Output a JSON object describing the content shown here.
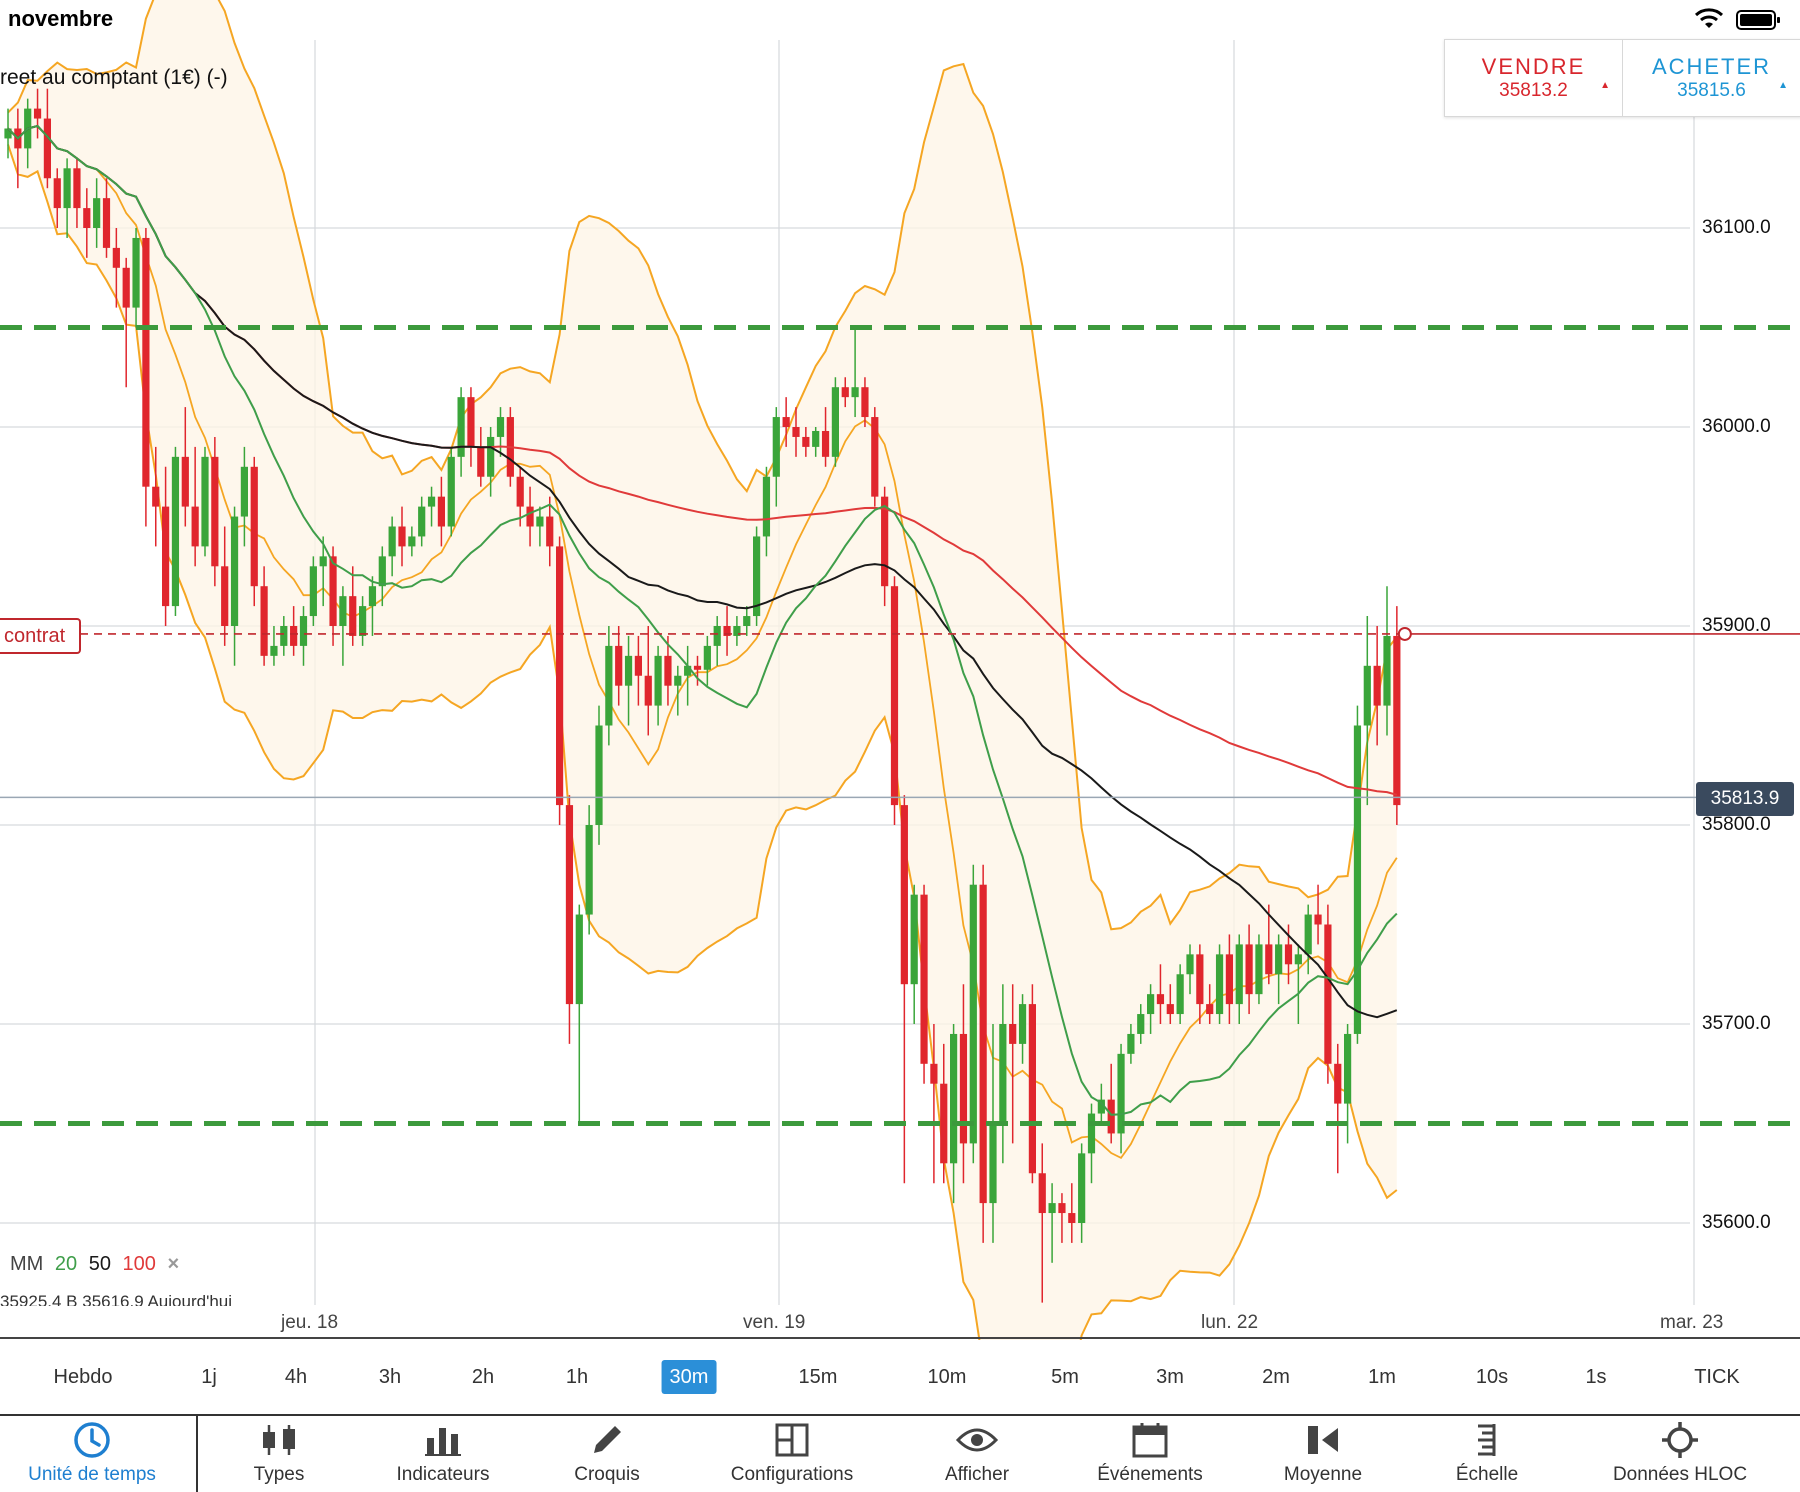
{
  "status_bar": {
    "month": "novembre",
    "wifi_icon": "wifi-icon",
    "battery_icon": "battery-icon"
  },
  "chart_title": "reet au comptant (1€) (-)",
  "trade": {
    "sell_label": "VENDRE",
    "sell_price": "35813.2",
    "sell_arrow": "▲",
    "buy_label": "ACHETER",
    "buy_price": "35815.6",
    "buy_arrow": "▲"
  },
  "price_axis": [
    "36100.0",
    "36000.0",
    "35900.0",
    "35800.0",
    "35700.0",
    "35600.0"
  ],
  "current_price": "35813.9",
  "position_tag": "contrat",
  "legend": {
    "label": "MM",
    "ma20": "20",
    "ma50": "50",
    "ma100": "100",
    "close": "×"
  },
  "info_row": "35925.4   B 35616.9   Aujourd'hui",
  "dates": [
    "jeu. 18",
    "ven. 19",
    "lun. 22",
    "mar. 23"
  ],
  "timeframes": [
    "Hebdo",
    "1j",
    "4h",
    "3h",
    "2h",
    "1h",
    "30m",
    "15m",
    "10m",
    "5m",
    "3m",
    "2m",
    "1m",
    "10s",
    "1s",
    "TICK"
  ],
  "active_timeframe": "30m",
  "toolbar": [
    {
      "label": "Unité de temps",
      "icon": "clock-icon"
    },
    {
      "label": "Types",
      "icon": "candlestick-icon"
    },
    {
      "label": "Indicateurs",
      "icon": "bar-chart-icon"
    },
    {
      "label": "Croquis",
      "icon": "pencil-icon"
    },
    {
      "label": "Configurations",
      "icon": "layout-icon"
    },
    {
      "label": "Afficher",
      "icon": "eye-icon"
    },
    {
      "label": "Événements",
      "icon": "calendar-icon"
    },
    {
      "label": "Moyenne",
      "icon": "average-icon"
    },
    {
      "label": "Échelle",
      "icon": "scale-icon"
    },
    {
      "label": "Données HLOC",
      "icon": "crosshair-icon"
    }
  ],
  "colors": {
    "bull": "#3aa53a",
    "bear": "#e0262d",
    "ma20": "#3f9e4a",
    "ma50": "#1a1a1a",
    "ma100": "#e03a3a",
    "bollinger": "#f5a623",
    "support": "#3c9a3c",
    "accent": "#2b8fd8"
  },
  "chart_data": {
    "type": "candlestick",
    "timeframe": "30m",
    "y_range": [
      35540,
      36200
    ],
    "support_levels": [
      36050,
      35650
    ],
    "position_level": 35896,
    "last_price": 35813.9,
    "candles": [
      [
        36145,
        36160,
        36135,
        36150
      ],
      [
        36150,
        36160,
        36120,
        36140
      ],
      [
        36140,
        36165,
        36130,
        36160
      ],
      [
        36160,
        36170,
        36145,
        36155
      ],
      [
        36155,
        36170,
        36120,
        36125
      ],
      [
        36125,
        36130,
        36100,
        36110
      ],
      [
        36110,
        36135,
        36095,
        36130
      ],
      [
        36130,
        36135,
        36100,
        36110
      ],
      [
        36110,
        36120,
        36085,
        36100
      ],
      [
        36100,
        36125,
        36090,
        36115
      ],
      [
        36115,
        36125,
        36085,
        36090
      ],
      [
        36090,
        36100,
        36060,
        36080
      ],
      [
        36080,
        36085,
        36020,
        36060
      ],
      [
        36060,
        36100,
        36050,
        36095
      ],
      [
        36095,
        36100,
        35950,
        35970
      ],
      [
        35970,
        35990,
        35940,
        35960
      ],
      [
        35960,
        35980,
        35900,
        35910
      ],
      [
        35910,
        35990,
        35905,
        35985
      ],
      [
        35985,
        36010,
        35950,
        35960
      ],
      [
        35960,
        35990,
        35930,
        35940
      ],
      [
        35940,
        35990,
        35935,
        35985
      ],
      [
        35985,
        35995,
        35920,
        35930
      ],
      [
        35930,
        35950,
        35890,
        35900
      ],
      [
        35900,
        35960,
        35880,
        35955
      ],
      [
        35955,
        35990,
        35940,
        35980
      ],
      [
        35980,
        35985,
        35910,
        35920
      ],
      [
        35920,
        35930,
        35880,
        35885
      ],
      [
        35885,
        35900,
        35880,
        35890
      ],
      [
        35890,
        35905,
        35885,
        35900
      ],
      [
        35900,
        35910,
        35885,
        35890
      ],
      [
        35890,
        35910,
        35880,
        35905
      ],
      [
        35905,
        35935,
        35900,
        35930
      ],
      [
        35930,
        35945,
        35910,
        35935
      ],
      [
        35935,
        35940,
        35890,
        35900
      ],
      [
        35900,
        35920,
        35880,
        35915
      ],
      [
        35915,
        35930,
        35890,
        35895
      ],
      [
        35895,
        35915,
        35890,
        35910
      ],
      [
        35910,
        35925,
        35895,
        35920
      ],
      [
        35920,
        35940,
        35910,
        35935
      ],
      [
        35935,
        35955,
        35925,
        35950
      ],
      [
        35950,
        35960,
        35930,
        35940
      ],
      [
        35940,
        35950,
        35935,
        35945
      ],
      [
        35945,
        35965,
        35940,
        35960
      ],
      [
        35960,
        35970,
        35950,
        35965
      ],
      [
        35965,
        35975,
        35940,
        35950
      ],
      [
        35950,
        35990,
        35945,
        35985
      ],
      [
        35985,
        36020,
        35975,
        36015
      ],
      [
        36015,
        36020,
        35980,
        35990
      ],
      [
        35990,
        36000,
        35970,
        35975
      ],
      [
        35975,
        36000,
        35965,
        35995
      ],
      [
        35995,
        36010,
        35985,
        36005
      ],
      [
        36005,
        36010,
        35970,
        35975
      ],
      [
        35975,
        35980,
        35950,
        35960
      ],
      [
        35960,
        35970,
        35940,
        35950
      ],
      [
        35950,
        35960,
        35940,
        35955
      ],
      [
        35955,
        35965,
        35930,
        35940
      ],
      [
        35940,
        35945,
        35800,
        35810
      ],
      [
        35810,
        35815,
        35690,
        35710
      ],
      [
        35710,
        35760,
        35650,
        35755
      ],
      [
        35755,
        35810,
        35745,
        35800
      ],
      [
        35800,
        35860,
        35790,
        35850
      ],
      [
        35850,
        35900,
        35840,
        35890
      ],
      [
        35890,
        35900,
        35860,
        35870
      ],
      [
        35870,
        35895,
        35850,
        35885
      ],
      [
        35885,
        35895,
        35860,
        35875
      ],
      [
        35875,
        35900,
        35845,
        35860
      ],
      [
        35860,
        35890,
        35850,
        35885
      ],
      [
        35885,
        35895,
        35860,
        35870
      ],
      [
        35870,
        35880,
        35855,
        35875
      ],
      [
        35875,
        35890,
        35860,
        35880
      ],
      [
        35880,
        35885,
        35870,
        35878
      ],
      [
        35878,
        35895,
        35870,
        35890
      ],
      [
        35890,
        35905,
        35880,
        35900
      ],
      [
        35900,
        35910,
        35885,
        35895
      ],
      [
        35895,
        35905,
        35890,
        35900
      ],
      [
        35900,
        35910,
        35895,
        35905
      ],
      [
        35905,
        35950,
        35900,
        35945
      ],
      [
        35945,
        35980,
        35935,
        35975
      ],
      [
        35975,
        36010,
        35960,
        36005
      ],
      [
        36005,
        36015,
        35990,
        36000
      ],
      [
        36000,
        36010,
        35985,
        35995
      ],
      [
        35995,
        36000,
        35985,
        35990
      ],
      [
        35990,
        36000,
        35985,
        35998
      ],
      [
        35998,
        36010,
        35980,
        35985
      ],
      [
        35985,
        36025,
        35980,
        36020
      ],
      [
        36020,
        36025,
        36010,
        36015
      ],
      [
        36015,
        36050,
        36005,
        36020
      ],
      [
        36020,
        36025,
        36000,
        36005
      ],
      [
        36005,
        36010,
        35960,
        35965
      ],
      [
        35965,
        35970,
        35910,
        35920
      ],
      [
        35920,
        35925,
        35800,
        35810
      ],
      [
        35810,
        35815,
        35620,
        35720
      ],
      [
        35720,
        35770,
        35700,
        35765
      ],
      [
        35765,
        35770,
        35670,
        35680
      ],
      [
        35680,
        35700,
        35620,
        35670
      ],
      [
        35670,
        35690,
        35620,
        35630
      ],
      [
        35630,
        35700,
        35610,
        35695
      ],
      [
        35695,
        35720,
        35620,
        35640
      ],
      [
        35640,
        35780,
        35630,
        35770
      ],
      [
        35770,
        35780,
        35590,
        35610
      ],
      [
        35610,
        35700,
        35590,
        35650
      ],
      [
        35650,
        35720,
        35630,
        35700
      ],
      [
        35700,
        35720,
        35640,
        35690
      ],
      [
        35690,
        35715,
        35680,
        35710
      ],
      [
        35710,
        35720,
        35620,
        35625
      ],
      [
        35625,
        35640,
        35560,
        35605
      ],
      [
        35605,
        35620,
        35580,
        35610
      ],
      [
        35610,
        35615,
        35590,
        35605
      ],
      [
        35605,
        35620,
        35590,
        35600
      ],
      [
        35600,
        35640,
        35590,
        35635
      ],
      [
        35635,
        35660,
        35620,
        35655
      ],
      [
        35655,
        35670,
        35650,
        35662
      ],
      [
        35662,
        35680,
        35640,
        35645
      ],
      [
        35645,
        35690,
        35635,
        35685
      ],
      [
        35685,
        35700,
        35680,
        35695
      ],
      [
        35695,
        35710,
        35690,
        35705
      ],
      [
        35705,
        35720,
        35695,
        35715
      ],
      [
        35715,
        35730,
        35700,
        35710
      ],
      [
        35710,
        35720,
        35700,
        35705
      ],
      [
        35705,
        35730,
        35700,
        35725
      ],
      [
        35725,
        35740,
        35715,
        35735
      ],
      [
        35735,
        35740,
        35700,
        35710
      ],
      [
        35710,
        35720,
        35700,
        35705
      ],
      [
        35705,
        35740,
        35700,
        35735
      ],
      [
        35735,
        35745,
        35700,
        35710
      ],
      [
        35710,
        35745,
        35700,
        35740
      ],
      [
        35740,
        35750,
        35705,
        35715
      ],
      [
        35715,
        35745,
        35710,
        35740
      ],
      [
        35740,
        35760,
        35720,
        35725
      ],
      [
        35725,
        35745,
        35710,
        35740
      ],
      [
        35740,
        35750,
        35720,
        35730
      ],
      [
        35730,
        35740,
        35700,
        35735
      ],
      [
        35735,
        35760,
        35725,
        35755
      ],
      [
        35755,
        35770,
        35740,
        35750
      ],
      [
        35750,
        35760,
        35670,
        35680
      ],
      [
        35680,
        35690,
        35625,
        35660
      ],
      [
        35660,
        35700,
        35640,
        35695
      ],
      [
        35695,
        35860,
        35690,
        35850
      ],
      [
        35850,
        35905,
        35810,
        35880
      ],
      [
        35880,
        35900,
        35840,
        35860
      ],
      [
        35860,
        35920,
        35845,
        35895
      ],
      [
        35895,
        35910,
        35800,
        35810
      ]
    ]
  }
}
